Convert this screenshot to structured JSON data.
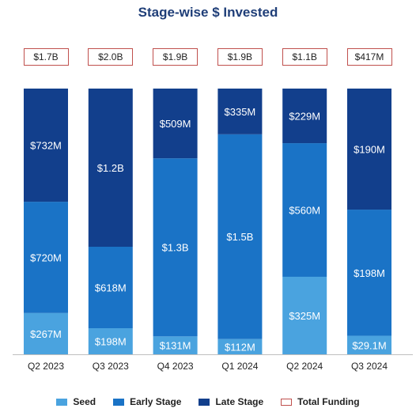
{
  "chart_data": {
    "type": "bar",
    "stacked": true,
    "title": "Stage-wise $ Invested",
    "categories": [
      "Q2 2023",
      "Q3 2023",
      "Q4 2023",
      "Q1 2024",
      "Q2 2024",
      "Q3 2024"
    ],
    "series": [
      {
        "name": "Seed",
        "color": "#4aa3df",
        "values": [
          267,
          198,
          131,
          112,
          325,
          29.1
        ],
        "labels": [
          "$267M",
          "$198M",
          "$131M",
          "$112M",
          "$325M",
          "$29.1M"
        ]
      },
      {
        "name": "Early Stage",
        "color": "#1a73c6",
        "values": [
          720,
          618,
          1300,
          1500,
          560,
          198
        ],
        "labels": [
          "$720M",
          "$618M",
          "$1.3B",
          "$1.5B",
          "$560M",
          "$198M"
        ]
      },
      {
        "name": "Late Stage",
        "color": "#123f8c",
        "values": [
          732,
          1200,
          509,
          335,
          229,
          190
        ],
        "labels": [
          "$732M",
          "$1.2B",
          "$509M",
          "$335M",
          "$229M",
          "$190M"
        ]
      }
    ],
    "totals": {
      "name": "Total Funding",
      "color": "#c0504d",
      "labels": [
        "$1.7B",
        "$2.0B",
        "$1.9B",
        "$1.9B",
        "$1.1B",
        "$417M"
      ]
    },
    "units": "$M",
    "normalized_100_percent": true,
    "legend_position": "bottom",
    "grid": false
  }
}
